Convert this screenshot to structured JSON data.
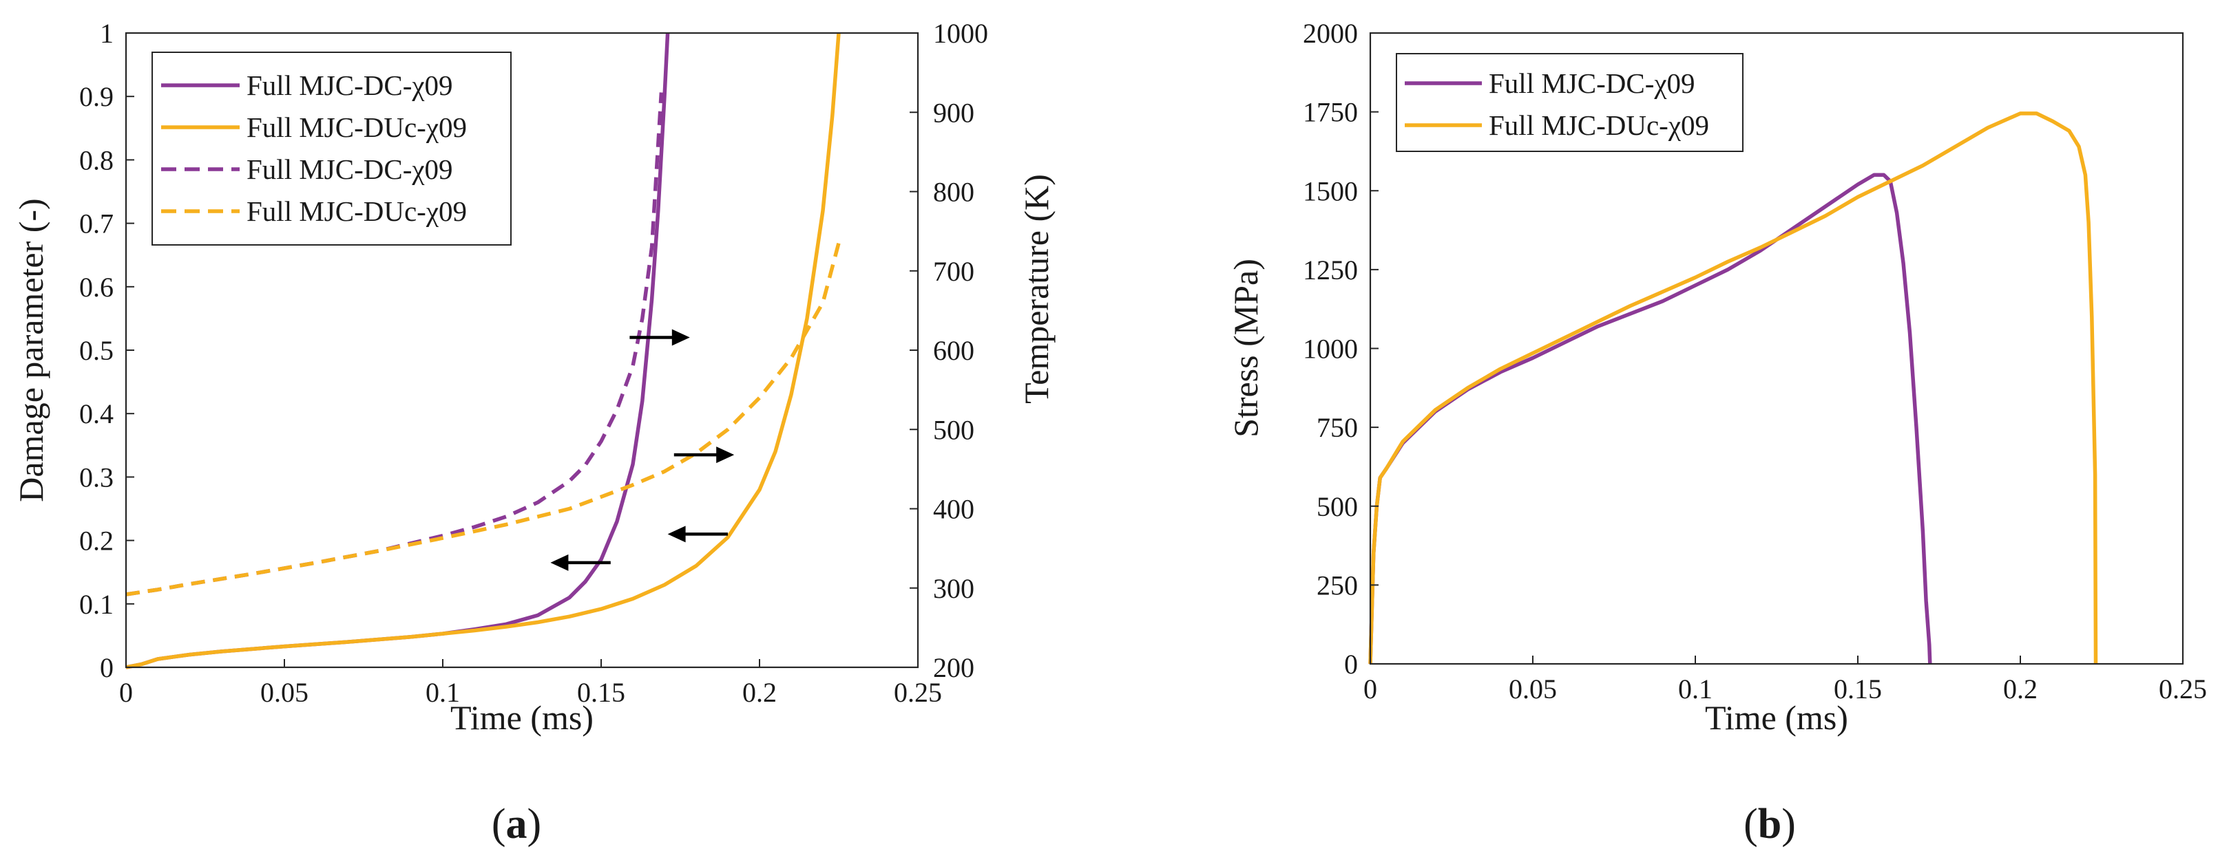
{
  "colors": {
    "purple": "#8B3A96",
    "orange": "#F6B01E",
    "axis": "#262626",
    "arrow": "#000000"
  },
  "panels": {
    "a": {
      "label_open": "(",
      "label_letter": "a",
      "label_close": ")"
    },
    "b": {
      "label_open": "(",
      "label_letter": "b",
      "label_close": ")"
    }
  },
  "chart_data": [
    {
      "type": "line",
      "id": "a",
      "xlabel": "Time (ms)",
      "ylabel": "Damage parameter (-)",
      "y2label": "Temperature (K)",
      "xlim": [
        0,
        0.25
      ],
      "ylim": [
        0,
        1
      ],
      "y2lim": [
        200,
        1000
      ],
      "xticks": [
        "0",
        "0.05",
        "0.1",
        "0.15",
        "0.2",
        "0.25"
      ],
      "yticks": [
        "0",
        "0.1",
        "0.2",
        "0.3",
        "0.4",
        "0.5",
        "0.6",
        "0.7",
        "0.8",
        "0.9",
        "1"
      ],
      "y2ticks": [
        "200",
        "300",
        "400",
        "500",
        "600",
        "700",
        "800",
        "900",
        "1000"
      ],
      "legend_position": "top-left",
      "series": [
        {
          "name": "Full MJC-DC-χ09",
          "axis": "left",
          "style": "solid",
          "color": "purple",
          "x": [
            0,
            0.005,
            0.01,
            0.02,
            0.03,
            0.05,
            0.07,
            0.09,
            0.1,
            0.11,
            0.12,
            0.13,
            0.14,
            0.145,
            0.15,
            0.155,
            0.16,
            0.163,
            0.166,
            0.168,
            0.17,
            0.171
          ],
          "values": [
            0,
            0.005,
            0.013,
            0.02,
            0.025,
            0.033,
            0.04,
            0.048,
            0.053,
            0.06,
            0.068,
            0.082,
            0.11,
            0.135,
            0.17,
            0.23,
            0.32,
            0.42,
            0.58,
            0.72,
            0.9,
            1.0
          ]
        },
        {
          "name": "Full MJC-DUc-χ09",
          "axis": "left",
          "style": "solid",
          "color": "orange",
          "x": [
            0,
            0.005,
            0.01,
            0.02,
            0.03,
            0.05,
            0.07,
            0.09,
            0.1,
            0.11,
            0.12,
            0.13,
            0.14,
            0.15,
            0.16,
            0.17,
            0.18,
            0.19,
            0.2,
            0.205,
            0.21,
            0.215,
            0.22,
            0.223,
            0.225
          ],
          "values": [
            0,
            0.005,
            0.013,
            0.02,
            0.025,
            0.033,
            0.04,
            0.048,
            0.053,
            0.058,
            0.064,
            0.071,
            0.08,
            0.092,
            0.108,
            0.13,
            0.16,
            0.205,
            0.28,
            0.34,
            0.43,
            0.55,
            0.72,
            0.87,
            1.0
          ]
        },
        {
          "name": "Full MJC-DC-χ09",
          "axis": "right",
          "style": "dashed",
          "color": "purple",
          "x": [
            0,
            0.01,
            0.02,
            0.04,
            0.06,
            0.08,
            0.1,
            0.11,
            0.12,
            0.13,
            0.14,
            0.145,
            0.15,
            0.155,
            0.16,
            0.163,
            0.166,
            0.169
          ],
          "values": [
            292,
            298,
            305,
            318,
            332,
            347,
            366,
            377,
            390,
            408,
            435,
            455,
            485,
            525,
            580,
            640,
            730,
            925
          ]
        },
        {
          "name": "Full MJC-DUc-χ09",
          "axis": "right",
          "style": "dashed",
          "color": "orange",
          "x": [
            0,
            0.01,
            0.02,
            0.04,
            0.06,
            0.08,
            0.1,
            0.12,
            0.14,
            0.16,
            0.17,
            0.18,
            0.19,
            0.2,
            0.21,
            0.22,
            0.225
          ],
          "values": [
            292,
            298,
            305,
            318,
            332,
            347,
            363,
            380,
            400,
            430,
            447,
            470,
            500,
            540,
            590,
            660,
            735
          ]
        }
      ]
    },
    {
      "type": "line",
      "id": "b",
      "xlabel": "Time (ms)",
      "ylabel": "Stress (MPa)",
      "xlim": [
        0,
        0.25
      ],
      "ylim": [
        0,
        2000
      ],
      "xticks": [
        "0",
        "0.05",
        "0.1",
        "0.15",
        "0.2",
        "0.25"
      ],
      "yticks": [
        "0",
        "250",
        "500",
        "750",
        "1000",
        "1250",
        "1500",
        "1750",
        "2000"
      ],
      "legend_position": "top-left",
      "series": [
        {
          "name": "Full MJC-DC-χ09",
          "color": "purple",
          "x": [
            0,
            0.001,
            0.002,
            0.003,
            0.005,
            0.01,
            0.02,
            0.03,
            0.04,
            0.05,
            0.06,
            0.07,
            0.08,
            0.09,
            0.1,
            0.11,
            0.12,
            0.13,
            0.14,
            0.15,
            0.155,
            0.158,
            0.16,
            0.162,
            0.164,
            0.166,
            0.168,
            0.17,
            0.171,
            0.172,
            0.1722
          ],
          "values": [
            0,
            350,
            500,
            590,
            620,
            700,
            800,
            870,
            925,
            970,
            1020,
            1070,
            1110,
            1150,
            1200,
            1250,
            1310,
            1380,
            1450,
            1520,
            1550,
            1550,
            1530,
            1430,
            1270,
            1050,
            750,
            420,
            200,
            60,
            0
          ]
        },
        {
          "name": "Full MJC-DUc-χ09",
          "color": "orange",
          "x": [
            0,
            0.001,
            0.002,
            0.003,
            0.005,
            0.01,
            0.02,
            0.03,
            0.04,
            0.05,
            0.06,
            0.07,
            0.08,
            0.09,
            0.1,
            0.11,
            0.12,
            0.13,
            0.14,
            0.15,
            0.16,
            0.17,
            0.18,
            0.19,
            0.2,
            0.205,
            0.21,
            0.215,
            0.218,
            0.22,
            0.221,
            0.222,
            0.223,
            0.2232
          ],
          "values": [
            0,
            350,
            500,
            590,
            620,
            705,
            805,
            875,
            935,
            985,
            1035,
            1085,
            1135,
            1180,
            1225,
            1275,
            1320,
            1370,
            1420,
            1480,
            1530,
            1580,
            1640,
            1700,
            1745,
            1745,
            1720,
            1690,
            1640,
            1550,
            1400,
            1100,
            600,
            0
          ]
        }
      ]
    }
  ]
}
